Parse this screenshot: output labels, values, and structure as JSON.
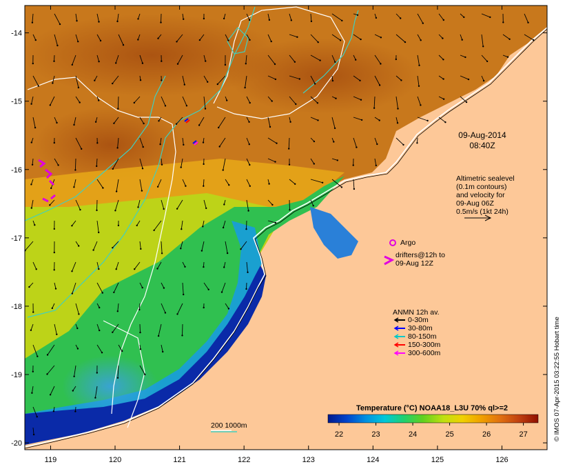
{
  "map": {
    "timestamp_date": "09-Aug-2014",
    "timestamp_time": "08:40Z",
    "altimetry_lines": [
      "Altimetric sealevel",
      "(0.1m contours)",
      "and velocity for",
      "09-Aug 06Z",
      "0.5m/s (1kt 24h)"
    ],
    "argo_label": "Argo",
    "drifters_lines": [
      "drifters@12h to",
      "09-Aug 12Z"
    ],
    "anmn_title": "ANMN 12h av.",
    "anmn_items": [
      {
        "label": "0-30m",
        "color": "#000000"
      },
      {
        "label": "30-80m",
        "color": "#0000ff"
      },
      {
        "label": "80-150m",
        "color": "#00c8c8"
      },
      {
        "label": "150-300m",
        "color": "#ff0000"
      },
      {
        "label": "300-600m",
        "color": "#ff00ff"
      }
    ],
    "depth_contour_label": "200  1000m",
    "credit": "© IMOS 07-Apr-2015 03:22:55 Hobart time",
    "colorbar": {
      "title": "Temperature (°C) NOAA18_L3U 70% ql>=2",
      "ticks": [
        "22",
        "23",
        "24",
        "25",
        "26",
        "27"
      ],
      "min": 21.7,
      "max": 27.4,
      "colors": [
        "#001a8c",
        "#0044cc",
        "#0090e0",
        "#00c8d8",
        "#20d070",
        "#60d020",
        "#c0e010",
        "#f0d000",
        "#f0a000",
        "#e07010",
        "#c04010",
        "#901000"
      ]
    },
    "axes": {
      "x_ticks": [
        "119",
        "120",
        "121",
        "122",
        "123",
        "124",
        "125",
        "126"
      ],
      "y_ticks": [
        "-14",
        "-15",
        "-16",
        "-17",
        "-18",
        "-19",
        "-20"
      ],
      "lon_range": [
        118.6,
        126.7
      ],
      "lat_range": [
        -20.1,
        -13.6
      ]
    },
    "colors": {
      "land": "#fdc898",
      "sea_warm": "#c87020",
      "sea_cool": "#20c050",
      "contour_200": "#ffffff",
      "contour_1000": "#40d0c0",
      "argo": "#e000e0"
    }
  }
}
